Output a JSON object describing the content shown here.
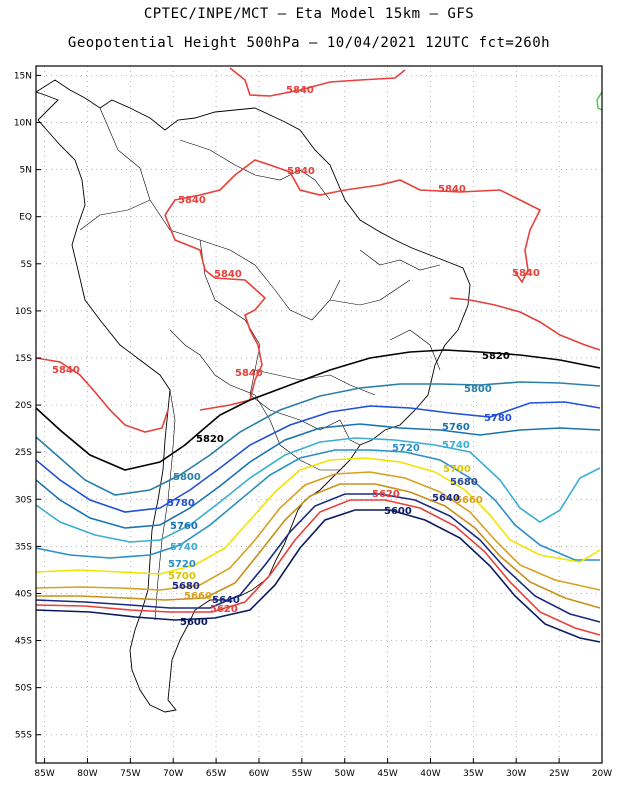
{
  "header": {
    "title_line1": "CPTEC/INPE/MCT – Eta Model 15km – GFS",
    "title_line2": "Geopotential Height 500hPa – 10/04/2021 12UTC fct=260h"
  },
  "axes": {
    "lat_labels": [
      "15N",
      "10N",
      "5N",
      "EQ",
      "5S",
      "10S",
      "15S",
      "20S",
      "25S",
      "30S",
      "35S",
      "40S",
      "45S",
      "50S",
      "55S"
    ],
    "lat_values": [
      15,
      10,
      5,
      0,
      -5,
      -10,
      -15,
      -20,
      -25,
      -30,
      -35,
      -40,
      -45,
      -50,
      -55
    ],
    "lon_labels": [
      "85W",
      "80W",
      "75W",
      "70W",
      "65W",
      "60W",
      "55W",
      "50W",
      "45W",
      "40W",
      "35W",
      "30W",
      "25W",
      "20W"
    ],
    "lon_values": [
      -85,
      -80,
      -75,
      -70,
      -65,
      -60,
      -55,
      -50,
      -45,
      -40,
      -35,
      -30,
      -25,
      -20
    ],
    "lon_range": [
      -86,
      -20
    ],
    "lat_range": [
      -58,
      16
    ],
    "grid": true
  },
  "contours": [
    {
      "level": "5840",
      "color": "#e8403a"
    },
    {
      "level": "5820",
      "color": "#000000"
    },
    {
      "level": "5800",
      "color": "#2a7fa8"
    },
    {
      "level": "5780",
      "color": "#2050d8"
    },
    {
      "level": "5760",
      "color": "#1a72b0"
    },
    {
      "level": "5740",
      "color": "#3aaed0"
    },
    {
      "level": "5720",
      "color": "#2a8ec8"
    },
    {
      "level": "5700",
      "color": "#f2e400"
    },
    {
      "level": "5680",
      "color": "#d8a020"
    },
    {
      "level": "5660",
      "color": "#d8a020"
    },
    {
      "level": "5640",
      "color": "#1a2a80"
    },
    {
      "level": "5620",
      "color": "#e8403a"
    },
    {
      "level": "5600",
      "color": "#0a1a60"
    }
  ]
}
